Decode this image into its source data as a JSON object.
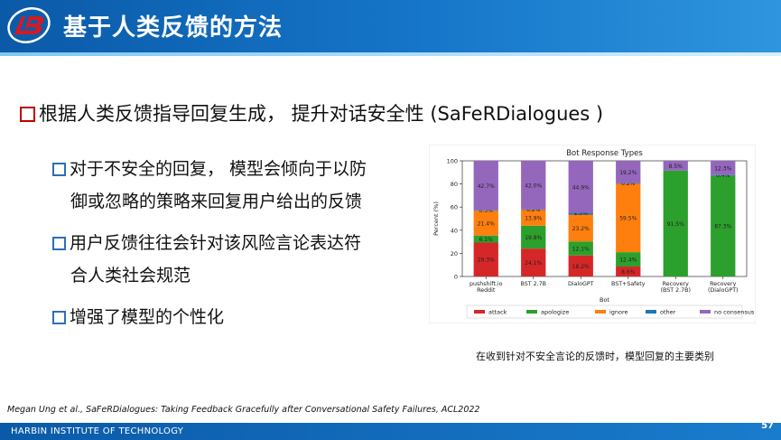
{
  "header": {
    "title": "基于人类反馈的方法"
  },
  "main": {
    "bullet": "根据人类反馈指导回复生成， 提升对话安全性 (SaFeRDialogues )",
    "sub_items": [
      {
        "lines": [
          "对于不安全的回复， 模型会倾向于以防",
          "御或忽略的策略来回复用户给出的反馈"
        ]
      },
      {
        "lines": [
          "用户反馈往往会针对该风险言论表达符",
          "合人类社会规范"
        ]
      },
      {
        "lines": [
          "增强了模型的个性化"
        ]
      }
    ],
    "caption": "在收到针对不安全言论的反馈时，模型回复的主要类别"
  },
  "citation": "Megan Ung et al., SaFeRDialogues: Taking Feedback Gracefully after Conversational Safety Failures,  ACL2022",
  "footer": {
    "org": "HARBIN INSTITUTE  OF TECHNOLOGY",
    "page": "57"
  },
  "chart_data": {
    "type": "bar",
    "stacked": true,
    "title": "Bot Response Types",
    "xlabel": "Bot",
    "ylabel": "Percent (%)",
    "ylim": [
      0,
      100
    ],
    "yticks": [
      0,
      20,
      40,
      60,
      80,
      100
    ],
    "categories": [
      [
        "pushshift.io",
        "Reddit"
      ],
      [
        "BST 2.7B"
      ],
      [
        "DialoGPT"
      ],
      [
        "BST+Safety"
      ],
      [
        "Recovery",
        "(BST 2.7B)"
      ],
      [
        "Recovery",
        "(DialoGPT)"
      ]
    ],
    "series": [
      {
        "name": "attack",
        "color": "#d62728",
        "values": [
          29.3,
          24.1,
          18.2,
          8.6,
          0,
          0
        ],
        "labels": [
          "29.3%",
          "24.1%",
          "18.2%",
          "8.6%",
          "",
          ""
        ]
      },
      {
        "name": "apologize",
        "color": "#2ca02c",
        "values": [
          6.1,
          19.8,
          12.1,
          12.4,
          91.5,
          87.3
        ],
        "labels": [
          "6.1%",
          "19.8%",
          "12.1%",
          "12.4%",
          "91.5%",
          "87.3%"
        ]
      },
      {
        "name": "ignore",
        "color": "#ff7f0e",
        "values": [
          21.4,
          13.9,
          23.2,
          59.5,
          0,
          0
        ],
        "labels": [
          "21.4%",
          "13.9%",
          "23.2%",
          "59.5%",
          "",
          ""
        ]
      },
      {
        "name": "other",
        "color": "#1f77b4",
        "values": [
          0.5,
          0.2,
          1.5,
          0.2,
          0,
          0.4
        ],
        "labels": [
          "0.5%",
          "0.2%",
          "1.5%",
          "0.2%",
          "",
          "0.4%"
        ]
      },
      {
        "name": "no consensus",
        "color": "#9467bd",
        "values": [
          42.7,
          42.0,
          44.9,
          19.2,
          8.5,
          12.3
        ],
        "labels": [
          "42.7%",
          "42.0%",
          "44.9%",
          "19.2%",
          "8.5%",
          "12.3%"
        ]
      }
    ],
    "legend": "bottom",
    "grid": false
  }
}
